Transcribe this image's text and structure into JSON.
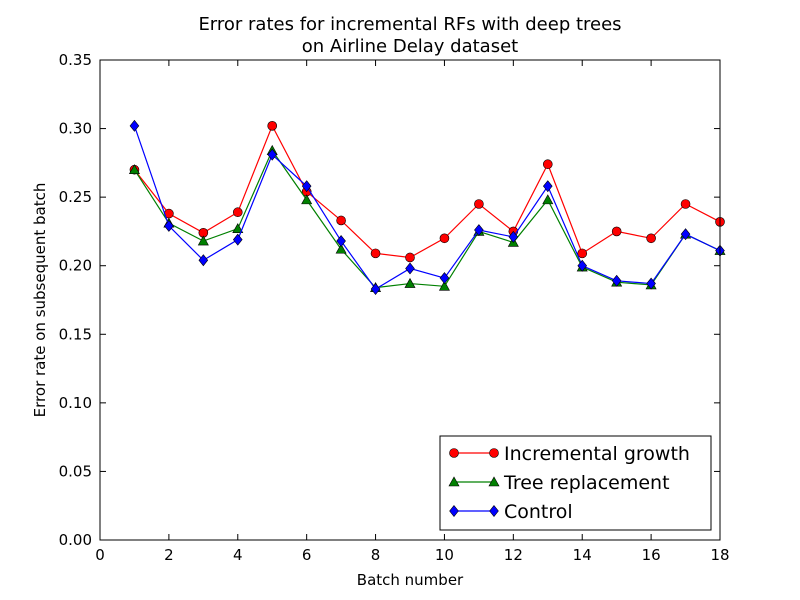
{
  "chart_data": {
    "type": "line",
    "title_lines": [
      "Error rates for incremental RFs with deep trees",
      "on Airline Delay dataset"
    ],
    "xlabel": "Batch number",
    "ylabel": "Error rate on subsequent batch",
    "xlim": [
      0,
      18
    ],
    "ylim": [
      0,
      0.35
    ],
    "x_ticks": [
      "0",
      "2",
      "4",
      "6",
      "8",
      "10",
      "12",
      "14",
      "16",
      "18"
    ],
    "y_ticks": [
      "0.00",
      "0.05",
      "0.10",
      "0.15",
      "0.20",
      "0.25",
      "0.30",
      "0.35"
    ],
    "grid": false,
    "legend_position": "lower-right",
    "x": [
      1,
      2,
      3,
      4,
      5,
      6,
      7,
      8,
      9,
      10,
      11,
      12,
      13,
      14,
      15,
      16,
      17,
      18
    ],
    "series": [
      {
        "name": "Incremental growth",
        "color": "#ff0000",
        "marker": "circle",
        "values": [
          0.27,
          0.238,
          0.224,
          0.239,
          0.302,
          0.254,
          0.233,
          0.209,
          0.206,
          0.22,
          0.245,
          0.225,
          0.274,
          0.209,
          0.225,
          0.22,
          0.245,
          0.232
        ]
      },
      {
        "name": "Tree replacement",
        "color": "#008000",
        "marker": "triangle",
        "values": [
          0.27,
          0.231,
          0.218,
          0.227,
          0.284,
          0.248,
          0.212,
          0.184,
          0.187,
          0.185,
          0.225,
          0.217,
          0.248,
          0.199,
          0.188,
          0.186,
          0.223,
          0.211
        ]
      },
      {
        "name": "Control",
        "color": "#0000ff",
        "marker": "diamond",
        "values": [
          0.302,
          0.229,
          0.204,
          0.219,
          0.281,
          0.258,
          0.218,
          0.183,
          0.198,
          0.191,
          0.226,
          0.221,
          0.258,
          0.2,
          0.189,
          0.187,
          0.223,
          0.211
        ]
      }
    ]
  }
}
